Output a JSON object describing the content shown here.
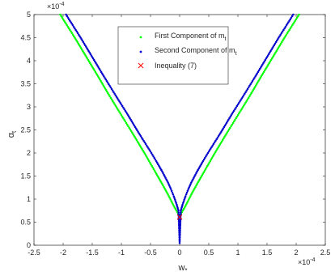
{
  "chart_data": {
    "type": "scatter",
    "xlabel": "w",
    "xlabel_sub": "*",
    "ylabel": "α",
    "ylabel_sub": "t",
    "x_exponent": "×10",
    "x_exponent_power": "-4",
    "y_exponent": "×10",
    "y_exponent_power": "-4",
    "xlim": [
      -2.5,
      2.5
    ],
    "ylim": [
      0,
      5
    ],
    "xticks": [
      -2.5,
      -2,
      -1.5,
      -1,
      -0.5,
      0,
      0.5,
      1,
      1.5,
      2,
      2.5
    ],
    "xtick_labels": [
      "-2.5",
      "-2",
      "-1.5",
      "-1",
      "-0.5",
      "0",
      "0.5",
      "1",
      "1.5",
      "2",
      "2.5"
    ],
    "yticks": [
      0,
      0.5,
      1,
      1.5,
      2,
      2.5,
      3,
      3.5,
      4,
      4.5,
      5
    ],
    "ytick_labels": [
      "0",
      "0.5",
      "1",
      "1.5",
      "2",
      "2.5",
      "3",
      "3.5",
      "4",
      "4.5",
      "5"
    ],
    "grid": false,
    "legend_position": "top-center",
    "series": [
      {
        "name": "First Component of m",
        "name_sub": "t",
        "color": "#00ff00",
        "marker": "dot",
        "x": [
          -2.05,
          -1.8,
          -1.6,
          -1.4,
          -1.2,
          -1.0,
          -0.8,
          -0.6,
          -0.4,
          -0.3,
          -0.2,
          -0.1,
          0.0,
          0.1,
          0.2,
          0.3,
          0.4,
          0.6,
          0.8,
          1.0,
          1.2,
          1.4,
          1.6,
          1.8,
          2.05
        ],
        "y": [
          5.0,
          4.5,
          4.08,
          3.66,
          3.23,
          2.82,
          2.41,
          1.99,
          1.55,
          1.33,
          1.1,
          0.85,
          0.63,
          0.85,
          1.1,
          1.33,
          1.55,
          1.99,
          2.41,
          2.82,
          3.23,
          3.66,
          4.08,
          4.5,
          5.0
        ]
      },
      {
        "name": "Second Component of m",
        "name_sub": "t",
        "color": "#0000cc",
        "marker": "dot",
        "x": [
          -1.95,
          -1.7,
          -1.5,
          -1.3,
          -1.1,
          -0.9,
          -0.7,
          -0.5,
          -0.4,
          -0.3,
          -0.2,
          -0.15,
          -0.1,
          -0.05,
          -0.02,
          0.0,
          0.02,
          0.05,
          0.1,
          0.15,
          0.2,
          0.3,
          0.4,
          0.5,
          0.7,
          0.9,
          1.1,
          1.3,
          1.5,
          1.7,
          1.95
        ],
        "y": [
          5.0,
          4.5,
          4.08,
          3.66,
          3.25,
          2.85,
          2.43,
          2.03,
          1.82,
          1.6,
          1.36,
          1.22,
          1.06,
          0.88,
          0.75,
          0.05,
          0.75,
          0.88,
          1.06,
          1.22,
          1.36,
          1.6,
          1.82,
          2.03,
          2.43,
          2.85,
          3.25,
          3.66,
          4.08,
          4.5,
          5.0
        ]
      },
      {
        "name": "Inequality (7)",
        "color": "#ff0000",
        "marker": "x",
        "x": [
          0.0
        ],
        "y": [
          0.61
        ]
      }
    ]
  }
}
